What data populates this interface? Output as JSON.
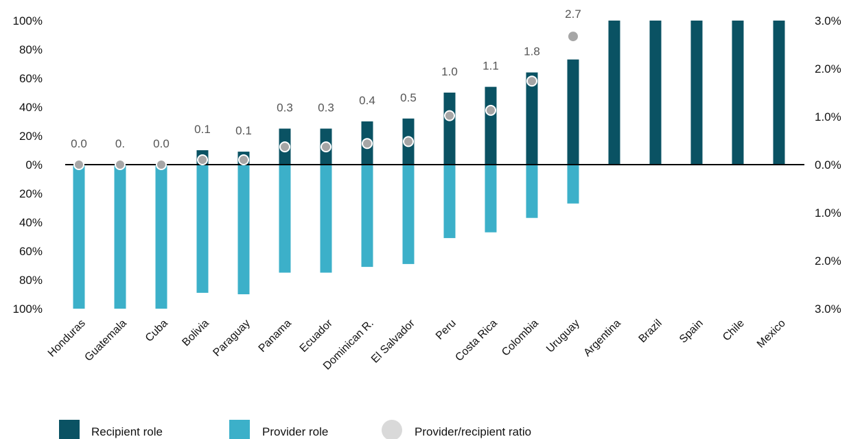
{
  "chart_data": {
    "type": "bar",
    "categories": [
      "Honduras",
      "Guatemala",
      "Cuba",
      "Bolivia",
      "Paraguay",
      "Panama",
      "Ecuador",
      "Dominican R.",
      "El Salvador",
      "Peru",
      "Costa Rica",
      "Colombia",
      "Uruguay",
      "Argentina",
      "Brazil",
      "Spain",
      "Chile",
      "Mexico"
    ],
    "series": [
      {
        "name": "Recipient role",
        "axis": "left",
        "direction": "up",
        "color": "#0a5263",
        "values": [
          0,
          0,
          0,
          10,
          9,
          25,
          25,
          30,
          32,
          50,
          54,
          64,
          73,
          100,
          100,
          100,
          100,
          100
        ]
      },
      {
        "name": "Provider role",
        "axis": "left",
        "direction": "down",
        "color": "#3cb0c9",
        "values": [
          100,
          100,
          100,
          89,
          90,
          75,
          75,
          71,
          69,
          51,
          47,
          37,
          27,
          0,
          0,
          0,
          0,
          0
        ]
      },
      {
        "name": "Provider/recipient ratio",
        "axis": "right",
        "type": "scatter",
        "color": "#a6a6a6",
        "values": [
          0.0,
          0.0,
          0.0,
          0.1,
          0.1,
          0.3,
          0.3,
          0.4,
          0.5,
          1.0,
          1.1,
          1.8,
          2.7,
          null,
          null,
          null,
          null,
          null
        ],
        "labels": [
          "0.0",
          "0.",
          "0.0",
          "0.1",
          "0.1",
          "0.3",
          "0.3",
          "0.4",
          "0.5",
          "1.0",
          "1.1",
          "1.8",
          "2.7",
          "",
          "",
          "",
          "",
          ""
        ]
      }
    ],
    "left_axis": {
      "ticks": [
        "100%",
        "80%",
        "60%",
        "40%",
        "20%",
        "0%",
        "20%",
        "40%",
        "60%",
        "80%",
        "100%"
      ],
      "range": [
        -100,
        100
      ]
    },
    "right_axis": {
      "ticks": [
        "3.0%",
        "2.0%",
        "1.0%",
        "0.0%",
        "1.0%",
        "2.0%",
        "3.0%"
      ],
      "range": [
        -3,
        3
      ]
    },
    "ratio_plot_range": [
      -3,
      3
    ],
    "grid": false,
    "legend_position": "bottom-left"
  }
}
